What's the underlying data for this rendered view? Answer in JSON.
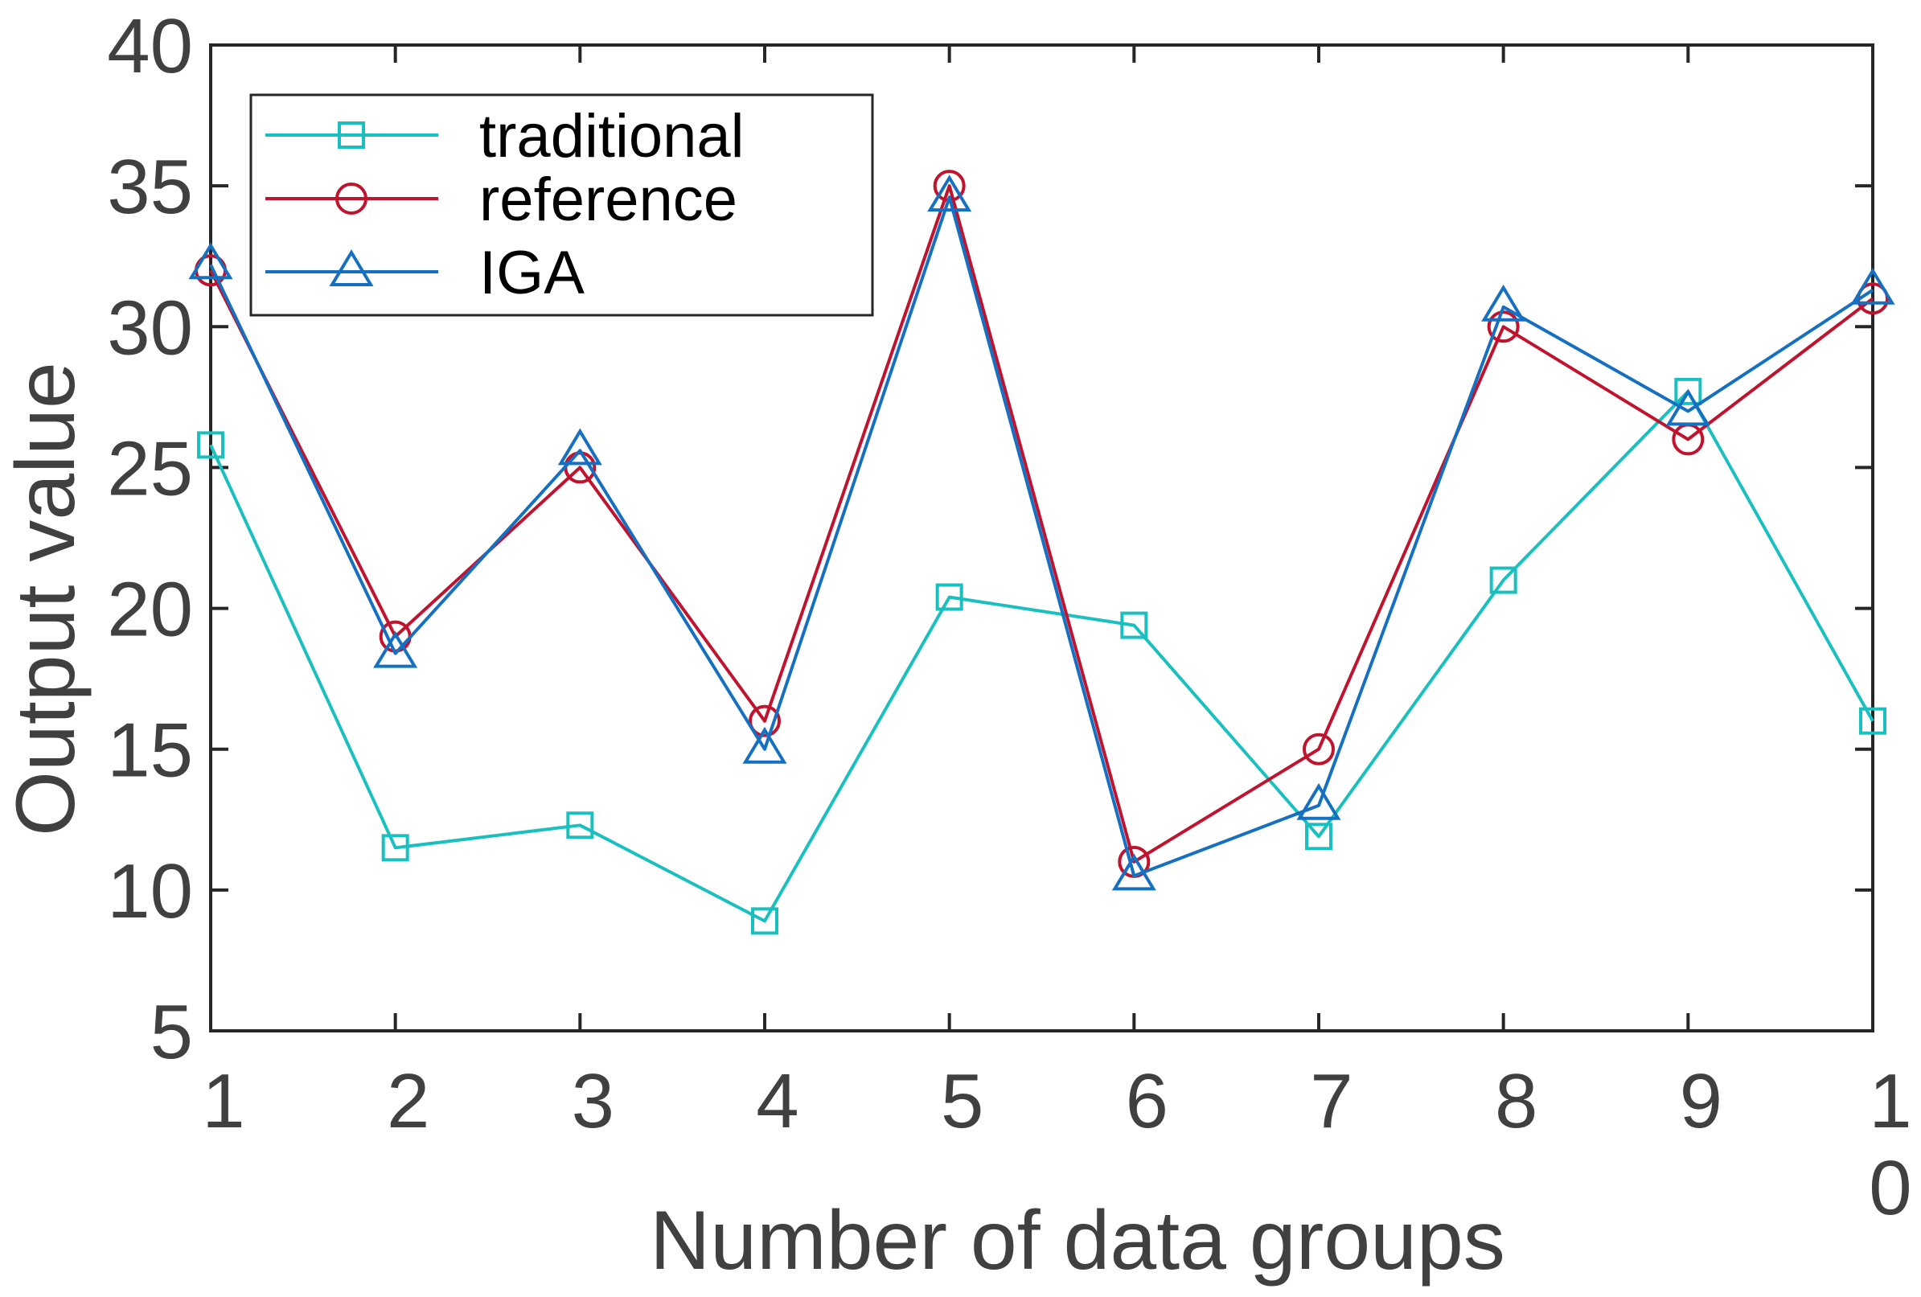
{
  "chart_data": {
    "type": "line",
    "title": "",
    "xlabel": "Number of data groups",
    "ylabel": "Output value",
    "xlim": [
      1,
      10
    ],
    "ylim": [
      5,
      40
    ],
    "x": [
      1,
      2,
      3,
      4,
      5,
      6,
      7,
      8,
      9,
      10
    ],
    "x_tick_labels": [
      "1",
      "2",
      "3",
      "4",
      "5",
      "6",
      "7",
      "8",
      "9",
      "1 0"
    ],
    "y_ticks": [
      5,
      10,
      15,
      20,
      25,
      30,
      35,
      40
    ],
    "y_tick_labels": [
      "5",
      "10",
      "15",
      "20",
      "25",
      "30",
      "35",
      "40"
    ],
    "grid": false,
    "legend_position": "top-left",
    "series": [
      {
        "name": "traditional",
        "color": "#1abfbf",
        "marker": "square",
        "values": [
          25.8,
          11.5,
          12.3,
          8.9,
          20.4,
          19.4,
          11.9,
          21.0,
          27.7,
          16.0
        ]
      },
      {
        "name": "reference",
        "color": "#c0132e",
        "marker": "circle",
        "values": [
          32.0,
          19.0,
          25.0,
          16.0,
          35.0,
          11.0,
          15.0,
          30.0,
          26.0,
          31.0
        ]
      },
      {
        "name": "IGA",
        "color": "#1670c2",
        "marker": "triangle",
        "values": [
          32.2,
          18.4,
          25.6,
          15.0,
          34.6,
          10.5,
          13.0,
          30.7,
          27.0,
          31.3
        ]
      }
    ]
  }
}
